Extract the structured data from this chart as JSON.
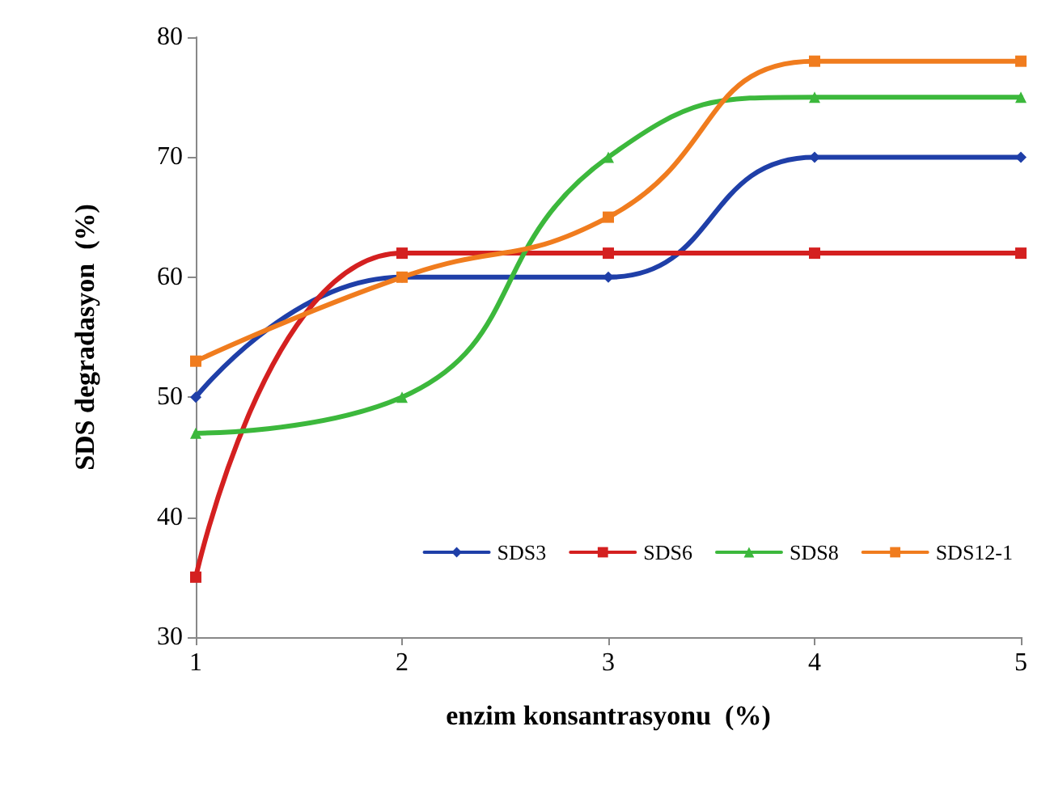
{
  "chart_data": {
    "type": "line",
    "xlabel": "enzim konsantrasyonu  (%)",
    "ylabel": "SDS degradasyon  (%)",
    "x": [
      1,
      2,
      3,
      4,
      5
    ],
    "xlim": [
      1,
      5
    ],
    "xticks": [
      1,
      2,
      3,
      4,
      5
    ],
    "ylim": [
      30,
      80
    ],
    "yticks": [
      30,
      40,
      50,
      60,
      70,
      80
    ],
    "grid": false,
    "legend": "bottom right",
    "line_style": "solid",
    "series": [
      {
        "name": "SDS3",
        "color": "#1f3fa8",
        "marker": "diamond",
        "values": [
          50,
          60,
          60,
          70,
          70
        ]
      },
      {
        "name": "SDS6",
        "color": "#d42020",
        "marker": "square",
        "values": [
          35,
          62,
          62,
          62,
          62
        ]
      },
      {
        "name": "SDS8",
        "color": "#3cb83c",
        "marker": "triangle",
        "values": [
          47,
          50,
          70,
          75,
          75
        ]
      },
      {
        "name": "SDS12-1",
        "color": "#f07c1e",
        "marker": "square",
        "values": [
          53,
          60,
          65,
          78,
          78
        ]
      }
    ]
  }
}
